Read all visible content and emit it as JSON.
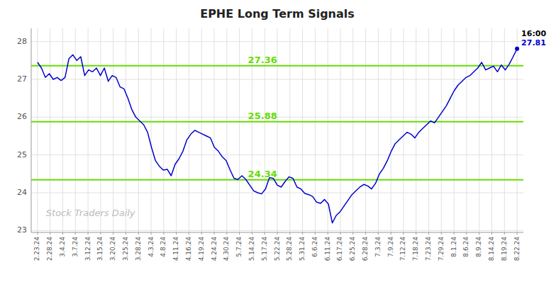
{
  "chart_data": {
    "type": "line",
    "title": "EPHE Long Term Signals",
    "color": "#0000cc",
    "grid": true,
    "xlim": [
      -0.5,
      38.5
    ],
    "xticks": [
      {
        "value": 0,
        "label": "2.23.24"
      },
      {
        "value": 1,
        "label": "2.28.24"
      },
      {
        "value": 2,
        "label": "3.4.24"
      },
      {
        "value": 3,
        "label": "3.7.24"
      },
      {
        "value": 4,
        "label": "3.12.24"
      },
      {
        "value": 5,
        "label": "3.15.24"
      },
      {
        "value": 6,
        "label": "3.20.24"
      },
      {
        "value": 7,
        "label": "3.25.24"
      },
      {
        "value": 8,
        "label": "3.28.24"
      },
      {
        "value": 9,
        "label": "4.3.24"
      },
      {
        "value": 10,
        "label": "4.8.24"
      },
      {
        "value": 11,
        "label": "4.11.24"
      },
      {
        "value": 12,
        "label": "4.16.24"
      },
      {
        "value": 13,
        "label": "4.19.24"
      },
      {
        "value": 14,
        "label": "4.24.24"
      },
      {
        "value": 15,
        "label": "4.30.24"
      },
      {
        "value": 16,
        "label": "5.7.24"
      },
      {
        "value": 17,
        "label": "5.14.24"
      },
      {
        "value": 18,
        "label": "5.17.24"
      },
      {
        "value": 19,
        "label": "5.22.24"
      },
      {
        "value": 20,
        "label": "5.28.24"
      },
      {
        "value": 21,
        "label": "5.31.24"
      },
      {
        "value": 22,
        "label": "6.6.24"
      },
      {
        "value": 23,
        "label": "6.11.24"
      },
      {
        "value": 24,
        "label": "6.17.24"
      },
      {
        "value": 25,
        "label": "6.25.24"
      },
      {
        "value": 26,
        "label": "6.28.24"
      },
      {
        "value": 27,
        "label": "7.3.24"
      },
      {
        "value": 28,
        "label": "7.9.24"
      },
      {
        "value": 29,
        "label": "7.12.24"
      },
      {
        "value": 30,
        "label": "7.18.24"
      },
      {
        "value": 31,
        "label": "7.23.24"
      },
      {
        "value": 32,
        "label": "7.29.24"
      },
      {
        "value": 33,
        "label": "8.1.24"
      },
      {
        "value": 34,
        "label": "8.6.24"
      },
      {
        "value": 35,
        "label": "8.9.24"
      },
      {
        "value": 36,
        "label": "8.14.24"
      },
      {
        "value": 37,
        "label": "8.19.24"
      },
      {
        "value": 38,
        "label": "8.22.24"
      }
    ],
    "ylim": [
      22.95,
      28.35
    ],
    "yticks": [
      23,
      24,
      25,
      26,
      27,
      28
    ],
    "x": [
      0,
      0.3115,
      0.623,
      0.9344,
      1.2459,
      1.5574,
      1.8689,
      2.1803,
      2.4918,
      2.8033,
      3.1148,
      3.4262,
      3.7377,
      4.0492,
      4.3607,
      4.6721,
      4.9836,
      5.2951,
      5.6066,
      5.918,
      6.2295,
      6.541,
      6.8525,
      7.1639,
      7.4754,
      7.7869,
      8.0984,
      8.4098,
      8.7213,
      9.0328,
      9.3443,
      9.6557,
      9.9672,
      10.2787,
      10.5902,
      10.9016,
      11.2131,
      11.5246,
      11.8361,
      12.1475,
      12.459,
      12.7705,
      13.082,
      13.3934,
      13.7049,
      14.0164,
      14.3279,
      14.6393,
      14.9508,
      15.2623,
      15.5738,
      15.8852,
      16.1967,
      16.5082,
      16.8197,
      17.1311,
      17.4426,
      17.7541,
      18.0656,
      18.377,
      18.6885,
      19,
      19.3115,
      19.623,
      19.9344,
      20.2459,
      20.5574,
      20.8689,
      21.1803,
      21.4918,
      21.8033,
      22.1148,
      22.4262,
      22.7377,
      23.0492,
      23.3607,
      23.6721,
      23.9836,
      24.2951,
      24.6066,
      24.918,
      25.2295,
      25.541,
      25.8525,
      26.1639,
      26.4754,
      26.7869,
      27.0984,
      27.4098,
      27.7213,
      28.0328,
      28.3443,
      28.6557,
      28.9672,
      29.2787,
      29.5902,
      29.9016,
      30.2131,
      30.5246,
      30.8361,
      31.1475,
      31.459,
      31.7705,
      32.082,
      32.3934,
      32.7049,
      33.0164,
      33.3279,
      33.6393,
      33.9508,
      34.2623,
      34.5738,
      34.8852,
      35.1967,
      35.5082,
      35.8197,
      36.1311,
      36.4426,
      36.7541,
      37.0656,
      37.377,
      37.6885,
      38
    ],
    "values": [
      27.45,
      27.3,
      27.05,
      27.15,
      27.0,
      27.05,
      26.97,
      27.05,
      27.55,
      27.65,
      27.5,
      27.6,
      27.1,
      27.25,
      27.2,
      27.3,
      27.1,
      27.3,
      26.95,
      27.1,
      27.05,
      26.8,
      26.75,
      26.5,
      26.2,
      26.0,
      25.9,
      25.8,
      25.6,
      25.2,
      24.85,
      24.7,
      24.6,
      24.62,
      24.45,
      24.75,
      24.9,
      25.1,
      25.4,
      25.55,
      25.65,
      25.6,
      25.55,
      25.5,
      25.45,
      25.2,
      25.1,
      24.95,
      24.85,
      24.6,
      24.38,
      24.35,
      24.45,
      24.35,
      24.2,
      24.05,
      24.0,
      23.97,
      24.1,
      24.4,
      24.38,
      24.2,
      24.15,
      24.3,
      24.42,
      24.38,
      24.15,
      24.1,
      23.98,
      23.95,
      23.9,
      23.75,
      23.72,
      23.82,
      23.7,
      23.2,
      23.4,
      23.5,
      23.65,
      23.8,
      23.95,
      24.05,
      24.15,
      24.22,
      24.18,
      24.1,
      24.25,
      24.5,
      24.65,
      24.85,
      25.1,
      25.3,
      25.4,
      25.5,
      25.6,
      25.55,
      25.45,
      25.6,
      25.7,
      25.8,
      25.9,
      25.85,
      26.0,
      26.15,
      26.3,
      26.5,
      26.7,
      26.85,
      26.95,
      27.05,
      27.1,
      27.2,
      27.3,
      27.45,
      27.25,
      27.3,
      27.35,
      27.2,
      27.38,
      27.25,
      27.4,
      27.6,
      27.81
    ],
    "reference_lines": [
      {
        "value": 27.36,
        "label": "27.36",
        "color": "#66dd00"
      },
      {
        "value": 25.88,
        "label": "25.88",
        "color": "#66dd00"
      },
      {
        "value": 24.34,
        "label": "24.34",
        "color": "#66dd00"
      }
    ],
    "last_point": {
      "label": "16:00",
      "value": 27.81,
      "color": "#0000cc"
    },
    "watermark": "Stock Traders Daily"
  }
}
